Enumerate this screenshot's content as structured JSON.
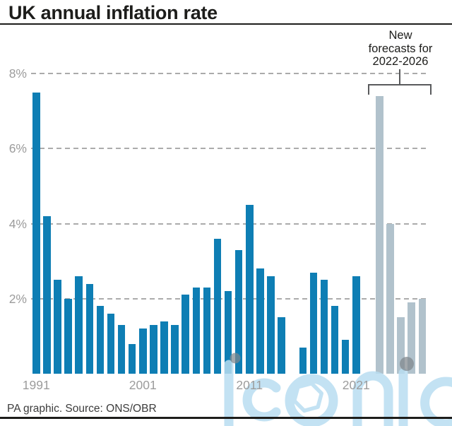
{
  "title": "UK annual inflation rate",
  "annotation": "New\nforecasts for\n2022-2026",
  "footer": "PA graphic. Source: ONS/OBR",
  "watermark": "iconic",
  "colors": {
    "historical_bar": "#0E7EB4",
    "forecast_bar": "#B1C2CC",
    "grid": "#ABABAB",
    "axis_text": "#9C9C9C",
    "text": "#1D1D1B",
    "bracket": "#595A5C",
    "watermark_blue": "#B9DEF1",
    "watermark_gray": "#7F878C"
  },
  "chart_data": {
    "type": "bar",
    "title": "UK annual inflation rate",
    "unit": "%",
    "ylim": [
      0,
      8
    ],
    "grid": "horizontal-dashed",
    "legend": "none",
    "annotation": "New forecasts for 2022-2026",
    "yticks": [
      {
        "value": 2,
        "label": "2%"
      },
      {
        "value": 4,
        "label": "4%"
      },
      {
        "value": 6,
        "label": "6%"
      },
      {
        "value": 8,
        "label": "8%"
      }
    ],
    "xticks": [
      {
        "year": 1991,
        "label": "1991"
      },
      {
        "year": 2001,
        "label": "2001"
      },
      {
        "year": 2011,
        "label": "2011"
      },
      {
        "year": 2021,
        "label": "2021"
      }
    ],
    "series": [
      {
        "name": "historical",
        "start_year": 1991,
        "color": "#0E7EB4",
        "values": [
          7.5,
          4.2,
          2.5,
          2.0,
          2.6,
          2.4,
          1.8,
          1.6,
          1.3,
          0.8,
          1.2,
          1.3,
          1.4,
          1.3,
          2.1,
          2.3,
          2.3,
          3.6,
          2.2,
          3.3,
          4.5,
          2.8,
          2.6,
          1.5,
          0.0,
          0.7,
          2.7,
          2.5,
          1.8,
          0.9,
          2.6
        ]
      },
      {
        "name": "forecast",
        "start_year": 2022,
        "color": "#B1C2CC",
        "values": [
          7.4,
          4.0,
          1.5,
          1.9,
          2.0
        ]
      }
    ]
  }
}
